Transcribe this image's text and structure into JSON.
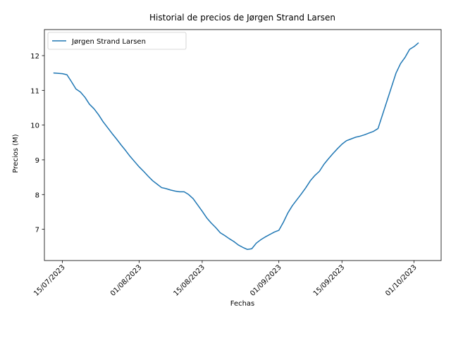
{
  "chart_data": {
    "type": "line",
    "title": "Historial de precios de Jørgen Strand Larsen",
    "xlabel": "Fechas",
    "ylabel": "Precios (M)",
    "x_tick_labels": [
      "15/07/2023",
      "01/08/2023",
      "15/08/2023",
      "01/09/2023",
      "15/09/2023",
      "01/10/2023"
    ],
    "y_ticks": [
      7,
      8,
      9,
      10,
      11,
      12
    ],
    "xlim": [
      "2023-07-11",
      "2023-10-07"
    ],
    "ylim": [
      6.1,
      12.75
    ],
    "grid": false,
    "legend_position": "top-left",
    "series": [
      {
        "name": "Jørgen Strand Larsen",
        "color": "#1f77b4",
        "points": [
          [
            "2023-07-13",
            11.5
          ],
          [
            "2023-07-15",
            11.48
          ],
          [
            "2023-07-16",
            11.45
          ],
          [
            "2023-07-17",
            11.25
          ],
          [
            "2023-07-18",
            11.04
          ],
          [
            "2023-07-19",
            10.95
          ],
          [
            "2023-07-20",
            10.8
          ],
          [
            "2023-07-21",
            10.6
          ],
          [
            "2023-07-22",
            10.47
          ],
          [
            "2023-07-23",
            10.3
          ],
          [
            "2023-07-24",
            10.1
          ],
          [
            "2023-07-25",
            9.93
          ],
          [
            "2023-07-26",
            9.76
          ],
          [
            "2023-07-27",
            9.6
          ],
          [
            "2023-07-28",
            9.43
          ],
          [
            "2023-07-29",
            9.27
          ],
          [
            "2023-07-30",
            9.1
          ],
          [
            "2023-07-31",
            8.95
          ],
          [
            "2023-08-01",
            8.8
          ],
          [
            "2023-08-02",
            8.67
          ],
          [
            "2023-08-03",
            8.53
          ],
          [
            "2023-08-04",
            8.4
          ],
          [
            "2023-08-05",
            8.3
          ],
          [
            "2023-08-06",
            8.2
          ],
          [
            "2023-08-07",
            8.17
          ],
          [
            "2023-08-08",
            8.13
          ],
          [
            "2023-08-09",
            8.1
          ],
          [
            "2023-08-10",
            8.08
          ],
          [
            "2023-08-11",
            8.08
          ],
          [
            "2023-08-12",
            8.0
          ],
          [
            "2023-08-13",
            7.88
          ],
          [
            "2023-08-14",
            7.7
          ],
          [
            "2023-08-15",
            7.52
          ],
          [
            "2023-08-16",
            7.33
          ],
          [
            "2023-08-17",
            7.18
          ],
          [
            "2023-08-18",
            7.05
          ],
          [
            "2023-08-19",
            6.9
          ],
          [
            "2023-08-20",
            6.82
          ],
          [
            "2023-08-21",
            6.73
          ],
          [
            "2023-08-22",
            6.65
          ],
          [
            "2023-08-23",
            6.55
          ],
          [
            "2023-08-24",
            6.48
          ],
          [
            "2023-08-25",
            6.42
          ],
          [
            "2023-08-26",
            6.44
          ],
          [
            "2023-08-27",
            6.6
          ],
          [
            "2023-08-28",
            6.7
          ],
          [
            "2023-08-29",
            6.78
          ],
          [
            "2023-08-30",
            6.85
          ],
          [
            "2023-08-31",
            6.92
          ],
          [
            "2023-09-01",
            6.97
          ],
          [
            "2023-09-02",
            7.2
          ],
          [
            "2023-09-03",
            7.47
          ],
          [
            "2023-09-04",
            7.68
          ],
          [
            "2023-09-05",
            7.85
          ],
          [
            "2023-09-06",
            8.02
          ],
          [
            "2023-09-07",
            8.2
          ],
          [
            "2023-09-08",
            8.4
          ],
          [
            "2023-09-09",
            8.55
          ],
          [
            "2023-09-10",
            8.67
          ],
          [
            "2023-09-11",
            8.87
          ],
          [
            "2023-09-12",
            9.03
          ],
          [
            "2023-09-13",
            9.18
          ],
          [
            "2023-09-14",
            9.32
          ],
          [
            "2023-09-15",
            9.45
          ],
          [
            "2023-09-16",
            9.55
          ],
          [
            "2023-09-17",
            9.6
          ],
          [
            "2023-09-18",
            9.65
          ],
          [
            "2023-09-19",
            9.68
          ],
          [
            "2023-09-20",
            9.72
          ],
          [
            "2023-09-21",
            9.77
          ],
          [
            "2023-09-22",
            9.82
          ],
          [
            "2023-09-23",
            9.9
          ],
          [
            "2023-09-24",
            10.3
          ],
          [
            "2023-09-25",
            10.7
          ],
          [
            "2023-09-26",
            11.1
          ],
          [
            "2023-09-27",
            11.5
          ],
          [
            "2023-09-28",
            11.77
          ],
          [
            "2023-09-29",
            11.95
          ],
          [
            "2023-09-30",
            12.18
          ],
          [
            "2023-10-01",
            12.26
          ],
          [
            "2023-10-02",
            12.37
          ]
        ]
      }
    ]
  }
}
